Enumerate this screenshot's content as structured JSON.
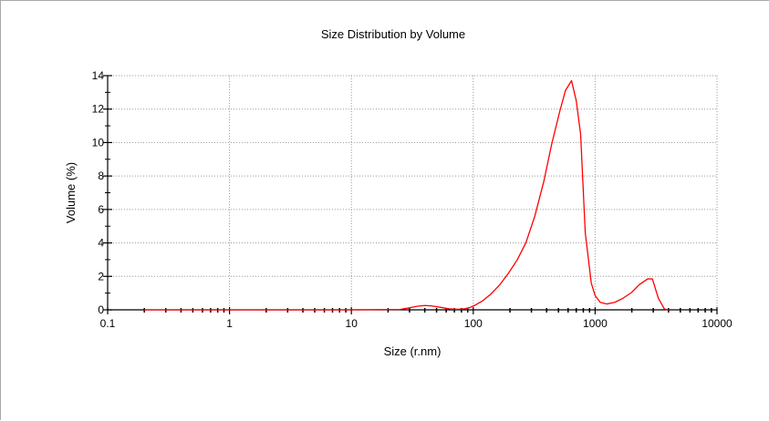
{
  "chart_data": {
    "type": "line",
    "title": "Size Distribution by Volume",
    "xlabel": "Size (r.nm)",
    "ylabel": "Volume (%)",
    "x_scale": "log",
    "xlim": [
      0.1,
      10000
    ],
    "ylim": [
      0,
      14
    ],
    "grid": true,
    "x_ticks": [
      0.1,
      1,
      10,
      100,
      1000,
      10000
    ],
    "x_tick_labels": [
      "0.1",
      "1",
      "10",
      "100",
      "1000",
      "10000"
    ],
    "y_ticks": [
      0,
      2,
      4,
      6,
      8,
      10,
      12,
      14
    ],
    "y_tick_labels": [
      "0",
      "2",
      "4",
      "6",
      "8",
      "10",
      "12",
      "14"
    ],
    "series": [
      {
        "color": "#ff0000",
        "x": [
          0.2,
          1,
          10,
          25,
          30,
          35,
          40,
          45,
          55,
          65,
          75,
          85,
          95,
          105,
          120,
          140,
          165,
          195,
          230,
          270,
          320,
          380,
          440,
          510,
          570,
          640,
          700,
          760,
          830,
          930,
          1000,
          1100,
          1250,
          1450,
          1700,
          2000,
          2300,
          2700,
          2950,
          3300,
          3700,
          4000
        ],
        "y": [
          0,
          0,
          0,
          0.02,
          0.12,
          0.22,
          0.26,
          0.24,
          0.14,
          0.05,
          0.03,
          0.06,
          0.15,
          0.3,
          0.55,
          0.95,
          1.5,
          2.2,
          3.0,
          4.0,
          5.6,
          7.7,
          9.9,
          11.8,
          13.1,
          13.7,
          12.5,
          10.5,
          4.6,
          1.6,
          0.85,
          0.45,
          0.35,
          0.45,
          0.7,
          1.05,
          1.5,
          1.85,
          1.85,
          0.7,
          0.05,
          0
        ]
      }
    ]
  }
}
